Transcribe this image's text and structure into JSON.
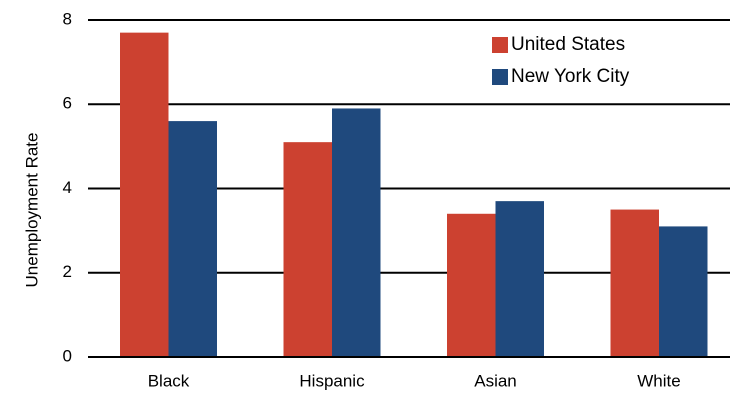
{
  "chart_data": {
    "type": "bar",
    "title": "",
    "xlabel": "",
    "ylabel": "Unemployment Rate",
    "categories": [
      "Black",
      "Hispanic",
      "Asian",
      "White"
    ],
    "series": [
      {
        "name": "United States",
        "color": "#cc4130",
        "values": [
          7.7,
          5.1,
          3.4,
          3.5
        ]
      },
      {
        "name": "New York City",
        "color": "#1f497d",
        "values": [
          5.6,
          5.9,
          3.7,
          3.1
        ]
      }
    ],
    "ylim": [
      0,
      8
    ],
    "yticks": [
      "0",
      "2",
      "4",
      "6",
      "8"
    ],
    "grid": true,
    "legend_position": "top-right"
  }
}
